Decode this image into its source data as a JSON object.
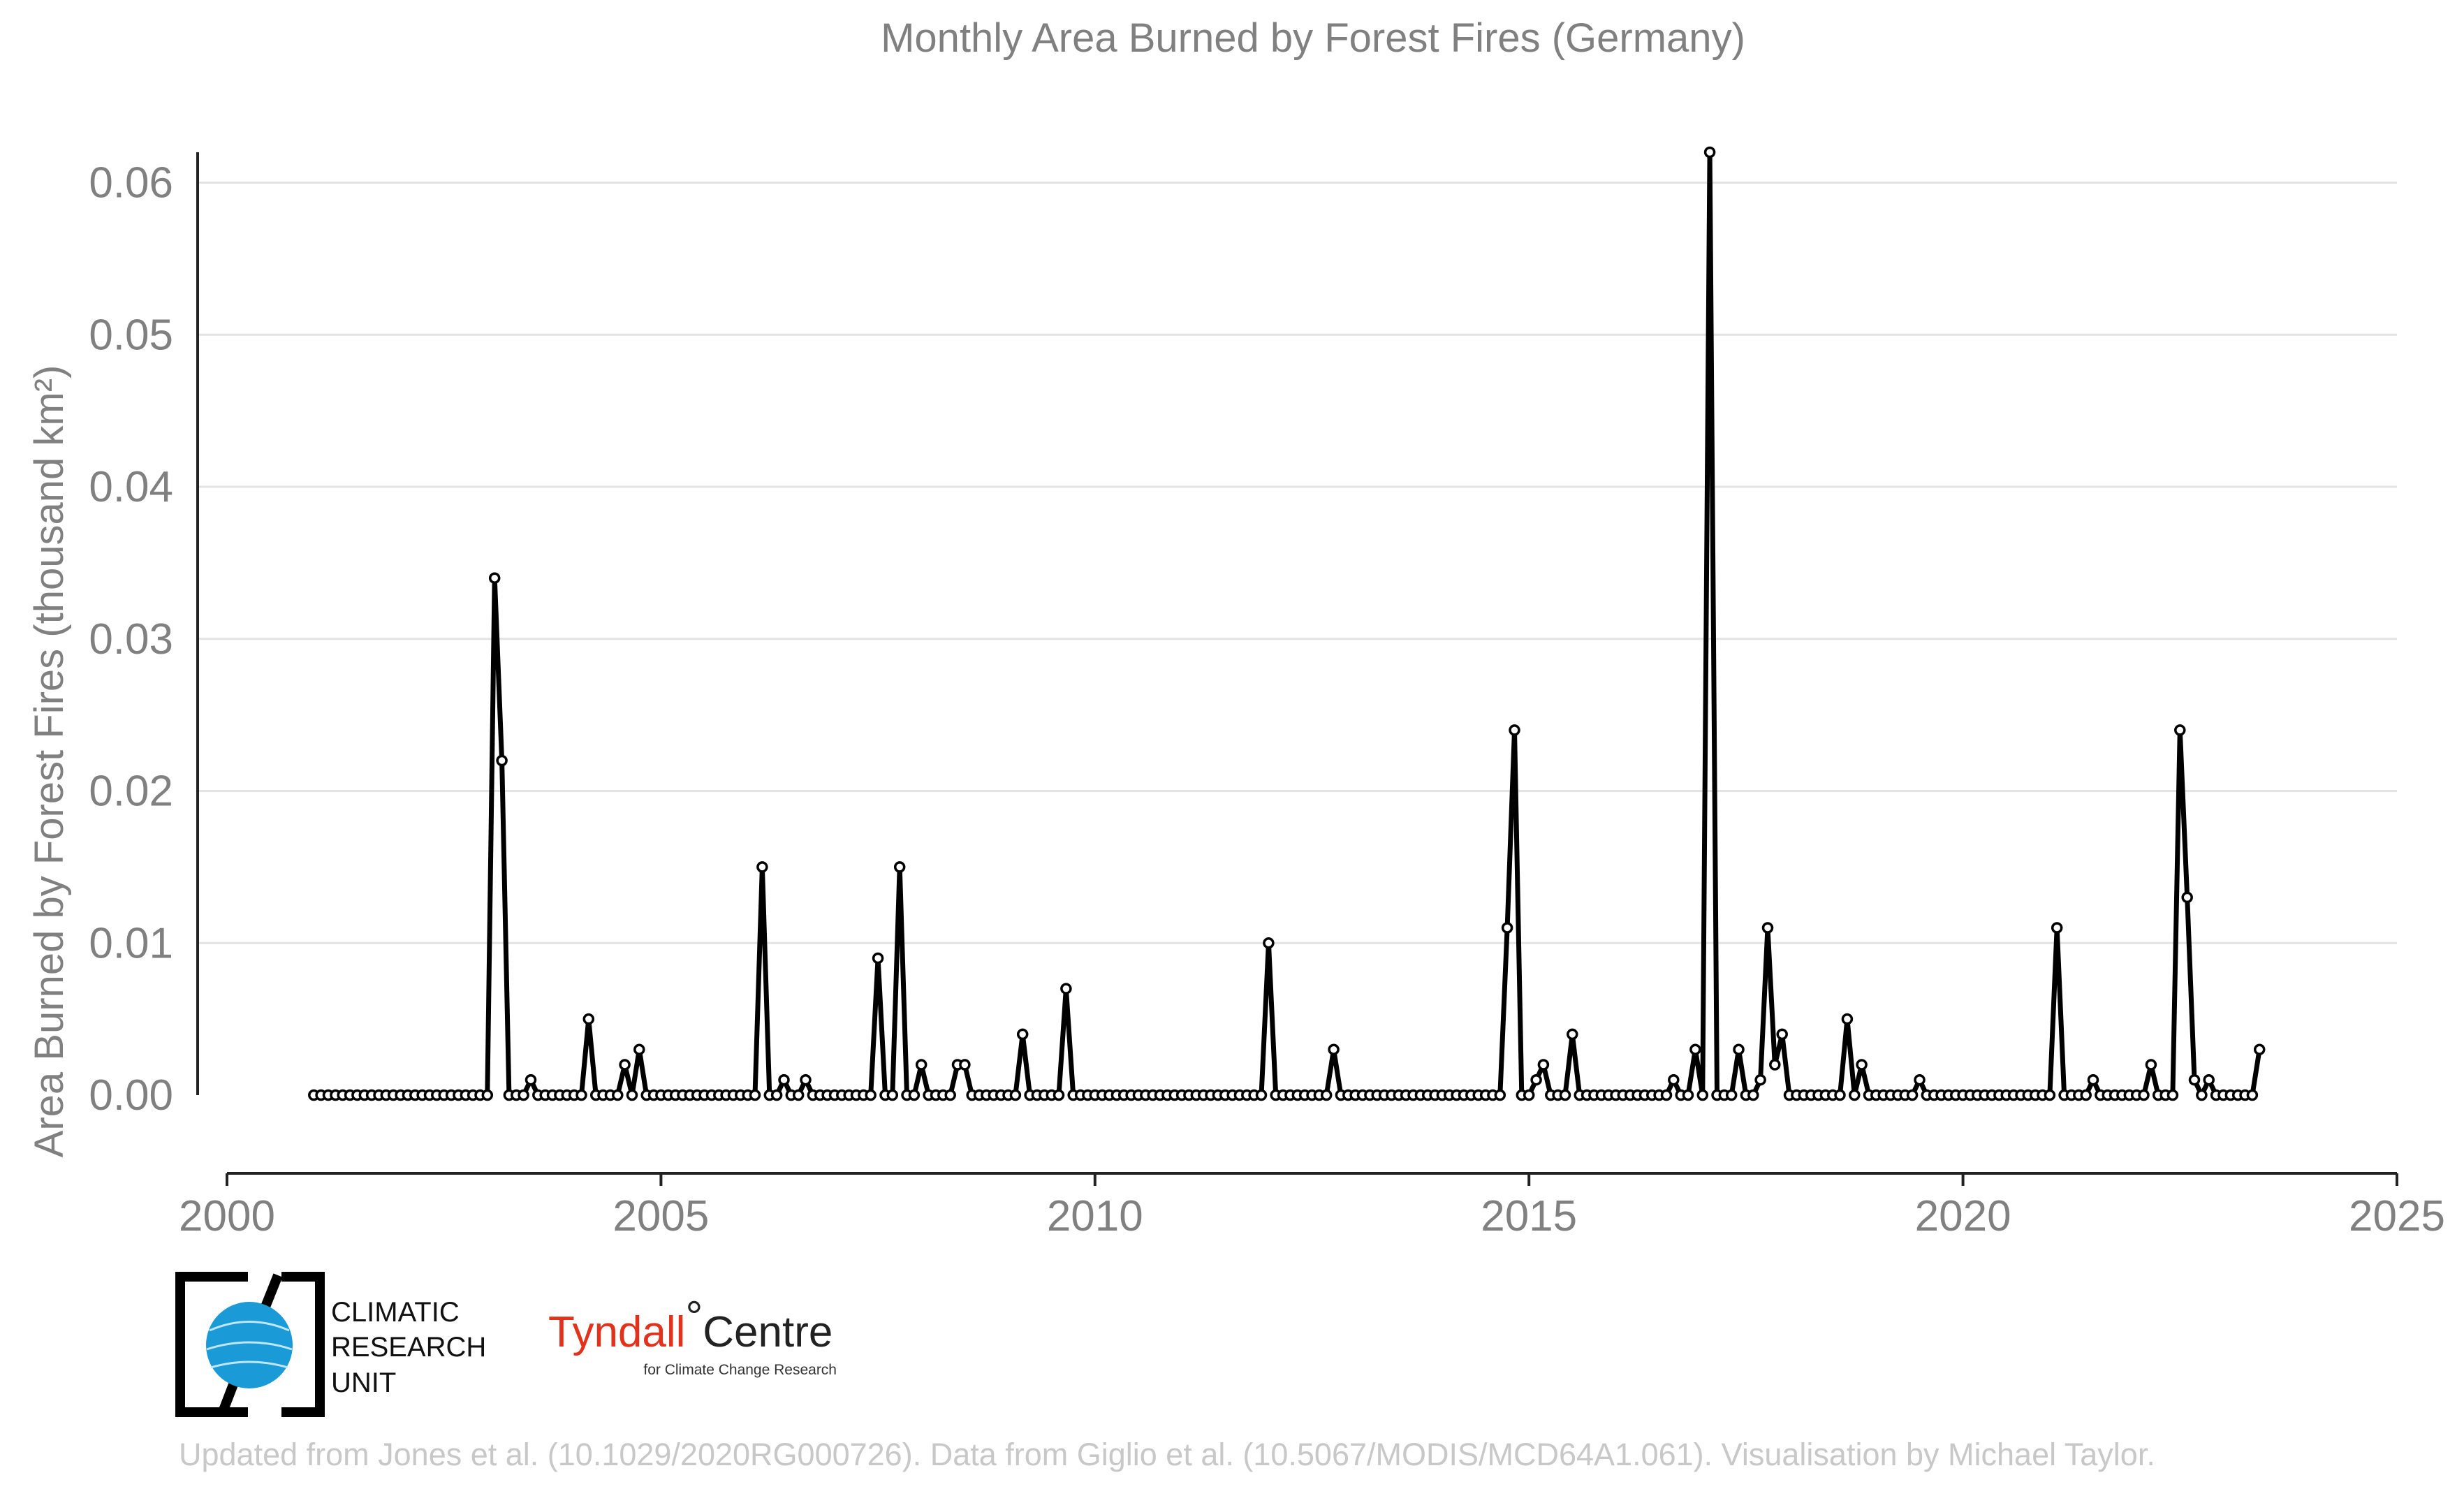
{
  "chart_data": {
    "type": "line",
    "title": "Monthly Area Burned by Forest Fires (Germany)",
    "ylabel": "Area Burned by Forest Fires (thousand km²)",
    "xlabel": "",
    "xlim": [
      2000,
      2025
    ],
    "ylim": [
      0,
      0.062
    ],
    "x_ticks": [
      "2000",
      "2005",
      "2010",
      "2015",
      "2020",
      "2025"
    ],
    "y_ticks": [
      "0.00",
      "0.01",
      "0.02",
      "0.03",
      "0.04",
      "0.05",
      "0.06"
    ],
    "grid": "horizontal",
    "series": [
      {
        "color": "#000000",
        "marker": "open-circle",
        "start": "2001-01",
        "frequency": "monthly",
        "values": [
          0,
          0,
          0,
          0,
          0,
          0,
          0,
          0,
          0,
          0,
          0,
          0,
          0,
          0,
          0,
          0,
          0,
          0,
          0,
          0,
          0,
          0,
          0,
          0,
          0,
          0.034,
          0.022,
          0,
          0,
          0,
          0.001,
          0,
          0,
          0,
          0,
          0,
          0,
          0,
          0.005,
          0,
          0,
          0,
          0,
          0.002,
          0,
          0.003,
          0,
          0,
          0,
          0,
          0,
          0,
          0,
          0,
          0,
          0,
          0,
          0,
          0,
          0,
          0,
          0,
          0.015,
          0,
          0,
          0.001,
          0,
          0,
          0.001,
          0,
          0,
          0,
          0,
          0,
          0,
          0,
          0,
          0,
          0.009,
          0,
          0,
          0.015,
          0,
          0,
          0.002,
          0,
          0,
          0,
          0,
          0.002,
          0.002,
          0,
          0,
          0,
          0,
          0,
          0,
          0,
          0.004,
          0,
          0,
          0,
          0,
          0,
          0.007,
          0,
          0,
          0,
          0,
          0,
          0,
          0,
          0,
          0,
          0,
          0,
          0,
          0,
          0,
          0,
          0,
          0,
          0,
          0,
          0,
          0,
          0,
          0,
          0,
          0,
          0,
          0,
          0.01,
          0,
          0,
          0,
          0,
          0,
          0,
          0,
          0,
          0.003,
          0,
          0,
          0,
          0,
          0,
          0,
          0,
          0,
          0,
          0,
          0,
          0,
          0,
          0,
          0,
          0,
          0,
          0,
          0,
          0,
          0,
          0,
          0,
          0.011,
          0.024,
          0,
          0,
          0.001,
          0.002,
          0,
          0,
          0,
          0.004,
          0,
          0,
          0,
          0,
          0,
          0,
          0,
          0,
          0,
          0,
          0,
          0,
          0,
          0.001,
          0,
          0,
          0.003,
          0,
          0.062,
          0,
          0,
          0,
          0.003,
          0,
          0,
          0.001,
          0.011,
          0.002,
          0.004,
          0,
          0,
          0,
          0,
          0,
          0,
          0,
          0,
          0.005,
          0,
          0.002,
          0,
          0,
          0,
          0,
          0,
          0,
          0,
          0.001,
          0,
          0,
          0,
          0,
          0,
          0,
          0,
          0,
          0,
          0,
          0,
          0,
          0,
          0,
          0,
          0,
          0,
          0,
          0.011,
          0,
          0,
          0,
          0,
          0.001,
          0,
          0,
          0,
          0,
          0,
          0,
          0,
          0.002,
          0,
          0,
          0,
          0.024,
          0.013,
          0.001,
          0,
          0.001,
          0,
          0,
          0,
          0,
          0,
          0,
          0.003
        ]
      }
    ]
  },
  "logos": {
    "cru_lines": [
      "CLIMATIC",
      "RESEARCH",
      "UNIT"
    ],
    "tyndall_main": "Tyndall",
    "tyndall_degree": "°",
    "tyndall_centre": "Centre",
    "tyndall_sub": "for Climate Change Research"
  },
  "footer": "Updated from Jones et al. (10.1029/2020RG000726). Data from Giglio et al. (10.5067/MODIS/MCD64A1.061). Visualisation by Michael Taylor.",
  "colors": {
    "line": "#000000",
    "grid": "#e3e3e3",
    "text": "#808080",
    "footer": "#c8c8c8",
    "cru_blue": "#1a9ad6",
    "tyndall_red": "#e2321c"
  }
}
